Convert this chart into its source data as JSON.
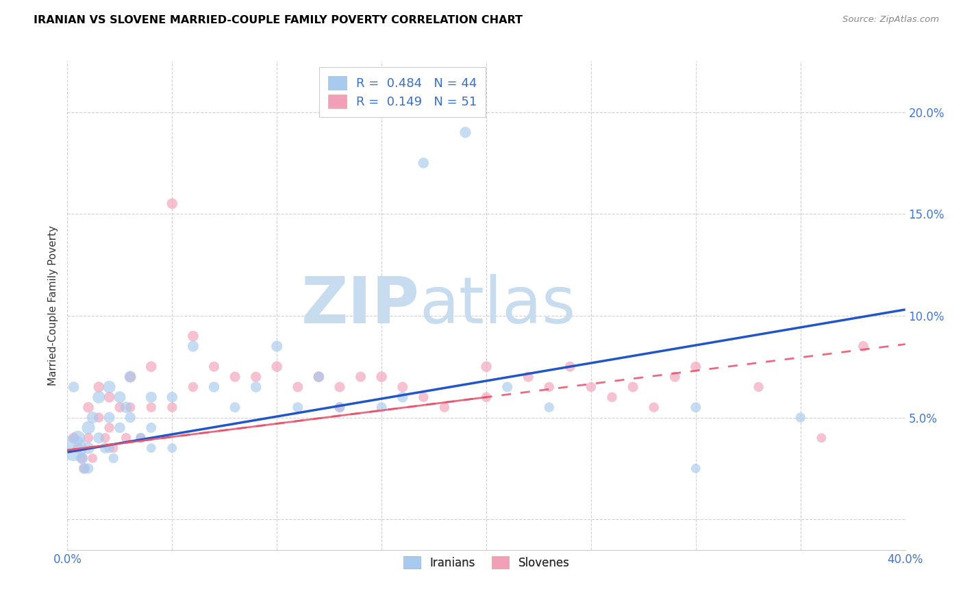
{
  "title": "IRANIAN VS SLOVENE MARRIED-COUPLE FAMILY POVERTY CORRELATION CHART",
  "source": "Source: ZipAtlas.com",
  "ylabel_label": "Married-Couple Family Poverty",
  "xlim": [
    0.0,
    0.4
  ],
  "ylim": [
    -0.015,
    0.225
  ],
  "xticks": [
    0.0,
    0.05,
    0.1,
    0.15,
    0.2,
    0.25,
    0.3,
    0.35,
    0.4
  ],
  "xticklabels": [
    "0.0%",
    "",
    "",
    "",
    "",
    "",
    "",
    "",
    "40.0%"
  ],
  "yticks": [
    0.0,
    0.05,
    0.1,
    0.15,
    0.2
  ],
  "yticklabels": [
    "",
    "5.0%",
    "10.0%",
    "15.0%",
    "20.0%"
  ],
  "iranian_R": 0.484,
  "iranian_N": 44,
  "slovene_R": 0.149,
  "slovene_N": 51,
  "blue_color": "#A8CAEE",
  "pink_color": "#F2A0B8",
  "blue_edge_color": "#7AAAD8",
  "pink_edge_color": "#E87898",
  "blue_line_color": "#2255C8",
  "pink_line_color": "#E8506A",
  "watermark_zip_color": "#C8DCF0",
  "watermark_atlas_color": "#C8DCF0",
  "legend_label_iranian": "Iranians",
  "legend_label_slovene": "Slovenes",
  "iranian_x": [
    0.003,
    0.005,
    0.007,
    0.008,
    0.01,
    0.01,
    0.01,
    0.012,
    0.015,
    0.015,
    0.018,
    0.02,
    0.02,
    0.02,
    0.022,
    0.025,
    0.025,
    0.028,
    0.03,
    0.03,
    0.035,
    0.04,
    0.04,
    0.04,
    0.05,
    0.05,
    0.06,
    0.07,
    0.08,
    0.09,
    0.1,
    0.11,
    0.12,
    0.13,
    0.15,
    0.16,
    0.17,
    0.19,
    0.21,
    0.23,
    0.3,
    0.3,
    0.35,
    0.003
  ],
  "iranian_y": [
    0.035,
    0.04,
    0.03,
    0.025,
    0.045,
    0.035,
    0.025,
    0.05,
    0.06,
    0.04,
    0.035,
    0.065,
    0.05,
    0.035,
    0.03,
    0.06,
    0.045,
    0.055,
    0.07,
    0.05,
    0.04,
    0.06,
    0.045,
    0.035,
    0.06,
    0.035,
    0.085,
    0.065,
    0.055,
    0.065,
    0.085,
    0.055,
    0.07,
    0.055,
    0.055,
    0.06,
    0.175,
    0.19,
    0.065,
    0.055,
    0.025,
    0.055,
    0.05,
    0.065
  ],
  "iranian_size": [
    400,
    120,
    80,
    70,
    100,
    80,
    60,
    80,
    90,
    70,
    65,
    90,
    70,
    55,
    55,
    80,
    65,
    75,
    80,
    65,
    60,
    70,
    60,
    50,
    65,
    50,
    70,
    65,
    60,
    65,
    70,
    60,
    65,
    60,
    60,
    65,
    65,
    70,
    60,
    55,
    50,
    60,
    55,
    65
  ],
  "slovene_x": [
    0.003,
    0.005,
    0.007,
    0.008,
    0.01,
    0.01,
    0.012,
    0.015,
    0.015,
    0.018,
    0.02,
    0.02,
    0.022,
    0.025,
    0.028,
    0.03,
    0.03,
    0.035,
    0.04,
    0.04,
    0.05,
    0.05,
    0.06,
    0.06,
    0.07,
    0.08,
    0.09,
    0.1,
    0.11,
    0.12,
    0.13,
    0.13,
    0.14,
    0.15,
    0.16,
    0.17,
    0.18,
    0.2,
    0.2,
    0.22,
    0.23,
    0.24,
    0.25,
    0.26,
    0.27,
    0.28,
    0.29,
    0.3,
    0.33,
    0.36,
    0.38
  ],
  "slovene_y": [
    0.04,
    0.035,
    0.03,
    0.025,
    0.055,
    0.04,
    0.03,
    0.065,
    0.05,
    0.04,
    0.06,
    0.045,
    0.035,
    0.055,
    0.04,
    0.07,
    0.055,
    0.04,
    0.075,
    0.055,
    0.155,
    0.055,
    0.09,
    0.065,
    0.075,
    0.07,
    0.07,
    0.075,
    0.065,
    0.07,
    0.065,
    0.055,
    0.07,
    0.07,
    0.065,
    0.06,
    0.055,
    0.075,
    0.06,
    0.07,
    0.065,
    0.075,
    0.065,
    0.06,
    0.065,
    0.055,
    0.07,
    0.075,
    0.065,
    0.04,
    0.085
  ],
  "slovene_size": [
    65,
    60,
    55,
    50,
    65,
    55,
    50,
    65,
    55,
    55,
    65,
    55,
    50,
    60,
    55,
    65,
    55,
    50,
    65,
    55,
    65,
    55,
    65,
    55,
    60,
    60,
    60,
    65,
    60,
    65,
    60,
    55,
    60,
    65,
    60,
    55,
    55,
    65,
    55,
    60,
    55,
    60,
    55,
    55,
    60,
    55,
    60,
    60,
    55,
    50,
    60
  ],
  "iranian_line_x0": 0.0,
  "iranian_line_y0": 0.033,
  "iranian_line_x1": 0.4,
  "iranian_line_y1": 0.103,
  "slovene_line_x0": 0.0,
  "slovene_line_y0": 0.034,
  "slovene_line_x1": 0.4,
  "slovene_line_y1": 0.086
}
